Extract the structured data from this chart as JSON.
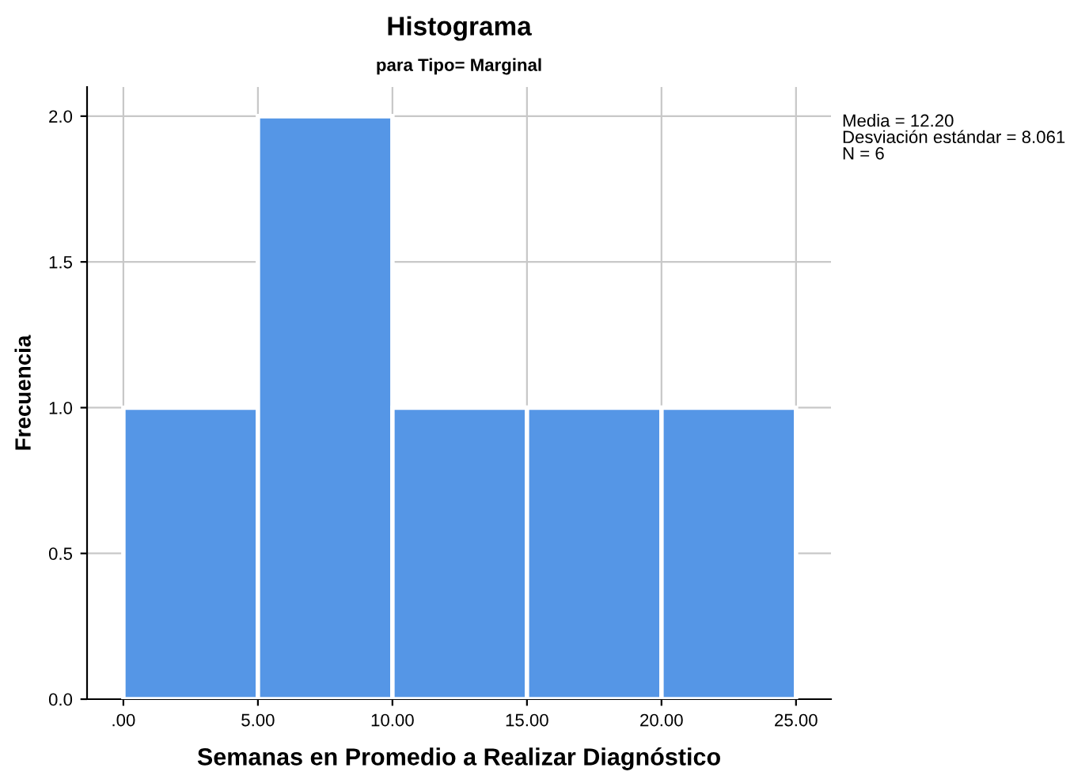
{
  "chart_data": {
    "type": "histogram",
    "title": "Histograma",
    "subtitle": "para Tipo= Marginal",
    "xlabel": "Semanas en Promedio a Realizar Diagnóstico",
    "ylabel": "Frecuencia",
    "bins": [
      0,
      5,
      10,
      15,
      20,
      25
    ],
    "values": [
      1,
      2,
      1,
      1,
      1
    ],
    "color": "#5596e6",
    "xlim": [
      -1.35,
      26.3
    ],
    "ylim": [
      0,
      2.1
    ],
    "xticks": [
      {
        "value": 0,
        "label": ".00"
      },
      {
        "value": 5,
        "label": "5.00"
      },
      {
        "value": 10,
        "label": "10.00"
      },
      {
        "value": 15,
        "label": "15.00"
      },
      {
        "value": 20,
        "label": "20.00"
      },
      {
        "value": 25,
        "label": "25.00"
      }
    ],
    "yticks": [
      {
        "value": 0,
        "label": "0.0"
      },
      {
        "value": 0.5,
        "label": "0.5"
      },
      {
        "value": 1,
        "label": "1.0"
      },
      {
        "value": 1.5,
        "label": "1.5"
      },
      {
        "value": 2,
        "label": "2.0"
      }
    ],
    "grid": true,
    "annotations": [
      "Media = 12.20\nDesviación estándar = 8.061\nN = 6"
    ]
  }
}
